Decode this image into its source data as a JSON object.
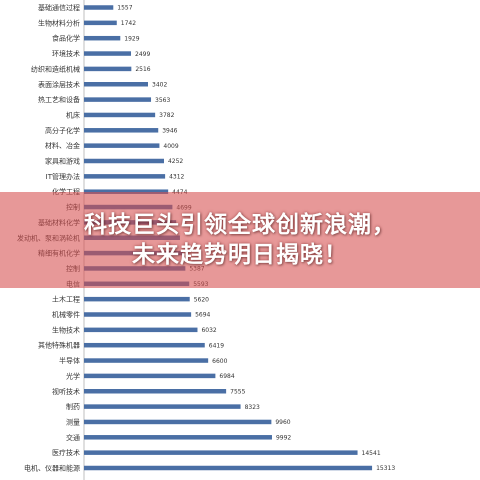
{
  "banner": {
    "line1": "科技巨头引领全球创新浪潮，",
    "line2": "未来趋势明日揭晓！"
  },
  "colors": {
    "bar": "#4a6fa5",
    "axis": "#bfbfbf",
    "banner": "#d64e4e"
  },
  "chart_data": {
    "type": "bar",
    "orientation": "horizontal",
    "title": "",
    "xlabel": "",
    "ylabel": "",
    "xlim": [
      0,
      16000
    ],
    "grid": false,
    "categories": [
      "基础通信过程",
      "生物材料分析",
      "食品化学",
      "环境技术",
      "纺织和造纸机械",
      "表面涂层技术",
      "热工艺和设备",
      "机床",
      "高分子化学",
      "材料、冶金",
      "家具和游戏",
      "IT管理办法",
      "化学工程",
      "控制",
      "基础材料化学",
      "发动机、泵和涡轮机",
      "精细有机化学",
      "控制",
      "电信",
      "土木工程",
      "机械零件",
      "生物技术",
      "其他特殊机器",
      "半导体",
      "光学",
      "视听技术",
      "制药",
      "测量",
      "交通",
      "医疗技术",
      "电机、仪器和能源"
    ],
    "values": [
      1557,
      1742,
      1929,
      2499,
      2516,
      3402,
      3563,
      3782,
      3946,
      4009,
      4252,
      4312,
      4474,
      4699,
      4900,
      5100,
      5250,
      5387,
      5593,
      5620,
      5694,
      6032,
      6419,
      6600,
      6984,
      7555,
      8323,
      9960,
      9992,
      14541,
      15313
    ],
    "value_labels": [
      "1557",
      "1742",
      "1929",
      "2499",
      "2516",
      "3402",
      "3563",
      "3782",
      "3946",
      "4009",
      "4252",
      "4312",
      "4474",
      "4699",
      "",
      "",
      "",
      "5387",
      "5593",
      "5620",
      "5694",
      "6032",
      "6419",
      "6600",
      "6984",
      "7555",
      "8323",
      "9960",
      "9992",
      "14541",
      "15313"
    ]
  }
}
